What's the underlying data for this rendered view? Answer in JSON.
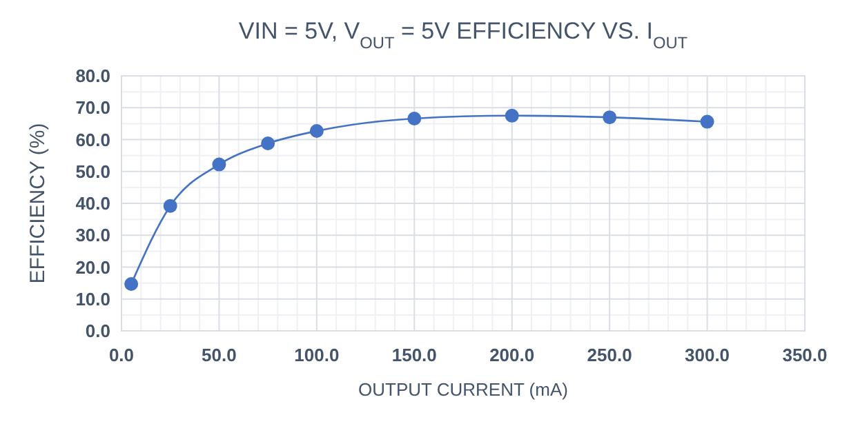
{
  "chart_data": {
    "type": "line",
    "title": "VIN = 5V, V$_{OUT}$ = 5V EFFICIENCY VS. I$_{OUT}$",
    "xlabel": "OUTPUT CURRENT (mA)",
    "ylabel": "EFFICIENCY (%)",
    "x": [
      5,
      25,
      50,
      75,
      100,
      150,
      200,
      250,
      300
    ],
    "series": [
      {
        "color": "#4472c4",
        "values": [
          14.7,
          39.2,
          52.2,
          58.8,
          62.7,
          66.6,
          67.5,
          67.0,
          65.6
        ]
      }
    ],
    "xlim": [
      0,
      350
    ],
    "ylim": [
      0,
      80
    ],
    "xticks": [
      {
        "value": 0,
        "label": "0.0"
      },
      {
        "value": 50,
        "label": "50.0"
      },
      {
        "value": 100,
        "label": "100.0"
      },
      {
        "value": 150,
        "label": "150.0"
      },
      {
        "value": 200,
        "label": "200.0"
      },
      {
        "value": 250,
        "label": "250.0"
      },
      {
        "value": 300,
        "label": "300.0"
      },
      {
        "value": 350,
        "label": "350.0"
      }
    ],
    "yticks": [
      {
        "value": 0,
        "label": "0.0"
      },
      {
        "value": 10,
        "label": "10.0"
      },
      {
        "value": 20,
        "label": "20.0"
      },
      {
        "value": 30,
        "label": "30.0"
      },
      {
        "value": 40,
        "label": "40.0"
      },
      {
        "value": 50,
        "label": "50.0"
      },
      {
        "value": 60,
        "label": "60.0"
      },
      {
        "value": 70,
        "label": "70.0"
      },
      {
        "value": 80,
        "label": "80.0"
      }
    ],
    "grid": true,
    "marker": "circle",
    "line_style": "solid"
  }
}
